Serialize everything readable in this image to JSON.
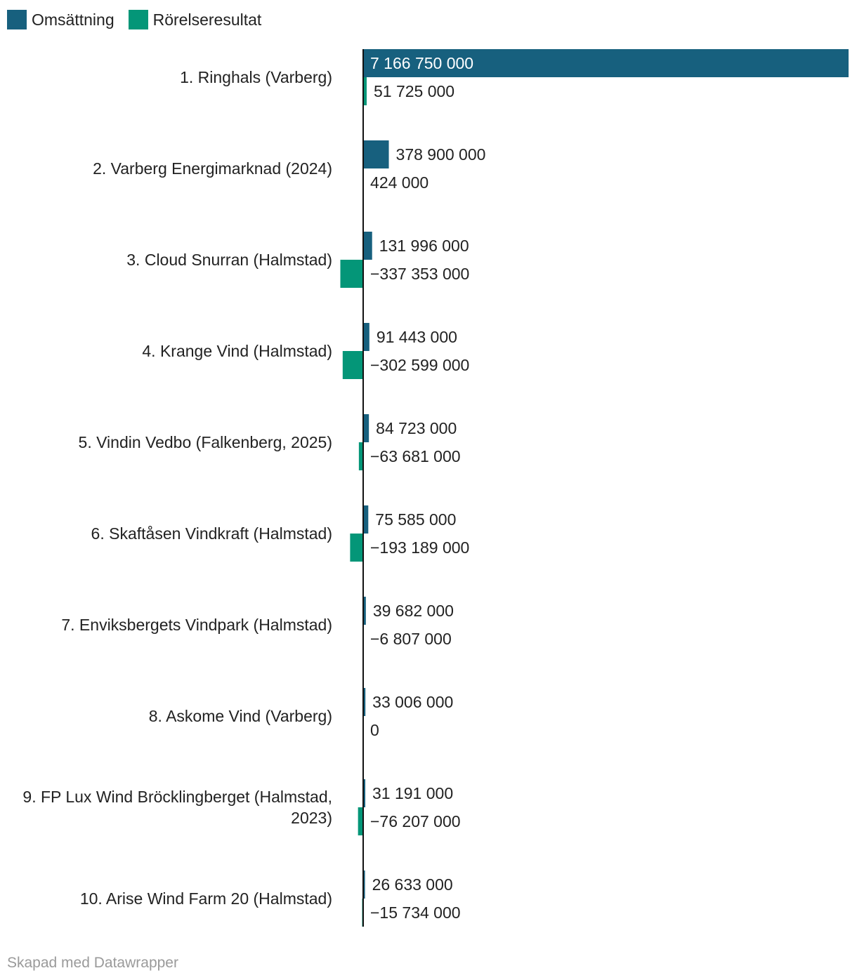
{
  "legend": [
    {
      "name": "Omsättning",
      "color": "#17607e"
    },
    {
      "name": "Rörelseresultat",
      "color": "#049678"
    }
  ],
  "footer": {
    "credit": "Skapad med Datawrapper"
  },
  "colors": {
    "text": "#222222",
    "bar_label_on_bar": "#ffffff",
    "axis": "#111111"
  },
  "chart_data": {
    "type": "bar",
    "orientation": "horizontal",
    "grouped": true,
    "title": "",
    "xlabel": "",
    "ylabel": "",
    "grid": false,
    "legend_position": "top-left",
    "xlim": [
      -337353000,
      7166750000
    ],
    "categories": [
      "1. Ringhals (Varberg)",
      "2. Varberg Energimarknad (2024)",
      "3. Cloud Snurran (Halmstad)",
      "4. Krange Vind (Halmstad)",
      "5. Vindin Vedbo (Falkenberg, 2025)",
      "6. Skaftåsen Vindkraft (Halmstad)",
      "7. Enviksbergets Vindpark (Halmstad)",
      "8. Askome Vind (Varberg)",
      "9. FP Lux Wind Bröcklingberget (Halmstad, 2023)",
      "10. Arise Wind Farm 20 (Halmstad)"
    ],
    "category_lines": [
      [
        "1. Ringhals (Varberg)"
      ],
      [
        "2. Varberg Energimarknad (2024)"
      ],
      [
        "3. Cloud Snurran (Halmstad)"
      ],
      [
        "4. Krange Vind (Halmstad)"
      ],
      [
        "5. Vindin Vedbo (Falkenberg, 2025)"
      ],
      [
        "6. Skaftåsen Vindkraft (Halmstad)"
      ],
      [
        "7. Enviksbergets Vindpark (Halmstad)"
      ],
      [
        "8. Askome Vind (Varberg)"
      ],
      [
        "9. FP Lux Wind Bröcklingberget (Halmstad,",
        "2023)"
      ],
      [
        "10. Arise Wind Farm 20 (Halmstad)"
      ]
    ],
    "series": [
      {
        "name": "Omsättning",
        "color": "#17607e",
        "values": [
          7166750000,
          378900000,
          131996000,
          91443000,
          84723000,
          75585000,
          39682000,
          33006000,
          31191000,
          26633000
        ],
        "labels": [
          "7 166 750 000",
          "378 900 000",
          "131 996 000",
          "91 443 000",
          "84 723 000",
          "75 585 000",
          "39 682 000",
          "33 006 000",
          "31 191 000",
          "26 633 000"
        ]
      },
      {
        "name": "Rörelseresultat",
        "color": "#049678",
        "values": [
          51725000,
          424000,
          -337353000,
          -302599000,
          -63681000,
          -193189000,
          -6807000,
          0,
          -76207000,
          -15734000
        ],
        "labels": [
          "51 725 000",
          "424 000",
          "−337 353 000",
          "−302 599 000",
          "−63 681 000",
          "−193 189 000",
          "−6 807 000",
          "0",
          "−76 207 000",
          "−15 734 000"
        ]
      }
    ]
  }
}
